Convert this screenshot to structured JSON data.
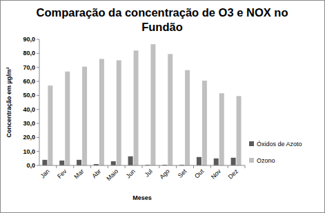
{
  "chart_data": {
    "type": "bar",
    "title": "Comparação da concentração de O3 e NOX no Fundão",
    "x_label": "Meses",
    "y_label": "Concentração em µg/m³",
    "categories": [
      "Jan",
      "Fev",
      "Mar",
      "Abr",
      "Maio",
      "Jun",
      "Jul",
      "Ago",
      "Set",
      "Out",
      "Nov",
      "Dez"
    ],
    "series": [
      {
        "name": "Óxidos de Azoto",
        "color": "#5a5a5a",
        "values": [
          4,
          3.5,
          4,
          1,
          3,
          6.5,
          0.5,
          0.5,
          0.5,
          6,
          5,
          5.5
        ]
      },
      {
        "name": "Ozono",
        "color": "#c0c0c0",
        "values": [
          57,
          67,
          70.5,
          76,
          75,
          82,
          86.5,
          79.5,
          68,
          60.5,
          51.5,
          49.5
        ]
      }
    ],
    "ylim": [
      0,
      90
    ],
    "yticks": [
      {
        "value": 0,
        "label": "0,0"
      },
      {
        "value": 10,
        "label": "10,0"
      },
      {
        "value": 20,
        "label": "20,0"
      },
      {
        "value": 30,
        "label": "30,0"
      },
      {
        "value": 40,
        "label": "40,0"
      },
      {
        "value": 50,
        "label": "50,0"
      },
      {
        "value": 60,
        "label": "60,0"
      },
      {
        "value": 70,
        "label": "70,0"
      },
      {
        "value": 80,
        "label": "80,0"
      },
      {
        "value": 90,
        "label": "90,0"
      }
    ],
    "grid": false,
    "legend": "right"
  }
}
